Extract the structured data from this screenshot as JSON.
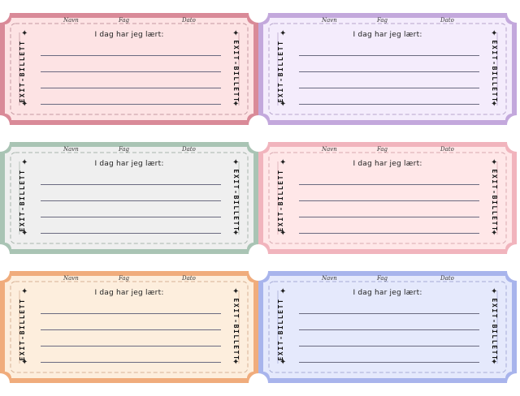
{
  "labels": {
    "name": "Navn",
    "subject": "Fag",
    "date": "Dato",
    "prompt": "I dag har jeg lært:",
    "side": "EXIT-BILLETT",
    "star": "✦"
  },
  "tickets": [
    {
      "id": "pink",
      "outer": "#d98a98",
      "inner": "#fde3e4",
      "dash": "#c59aa2"
    },
    {
      "id": "purple",
      "outer": "#c3a8dc",
      "inner": "#f4ecfc",
      "dash": "#b7a6cc"
    },
    {
      "id": "grey",
      "outer": "#a9c4b4",
      "inner": "#efefef",
      "dash": "#aab5ae"
    },
    {
      "id": "rose",
      "outer": "#f1b4bd",
      "inner": "#ffe7e8",
      "dash": "#d9aab1"
    },
    {
      "id": "orange",
      "outer": "#f0ac7c",
      "inner": "#fdeedd",
      "dash": "#d6b296"
    },
    {
      "id": "blue",
      "outer": "#a8b4ec",
      "inner": "#e5e9fc",
      "dash": "#a6acd6"
    }
  ]
}
